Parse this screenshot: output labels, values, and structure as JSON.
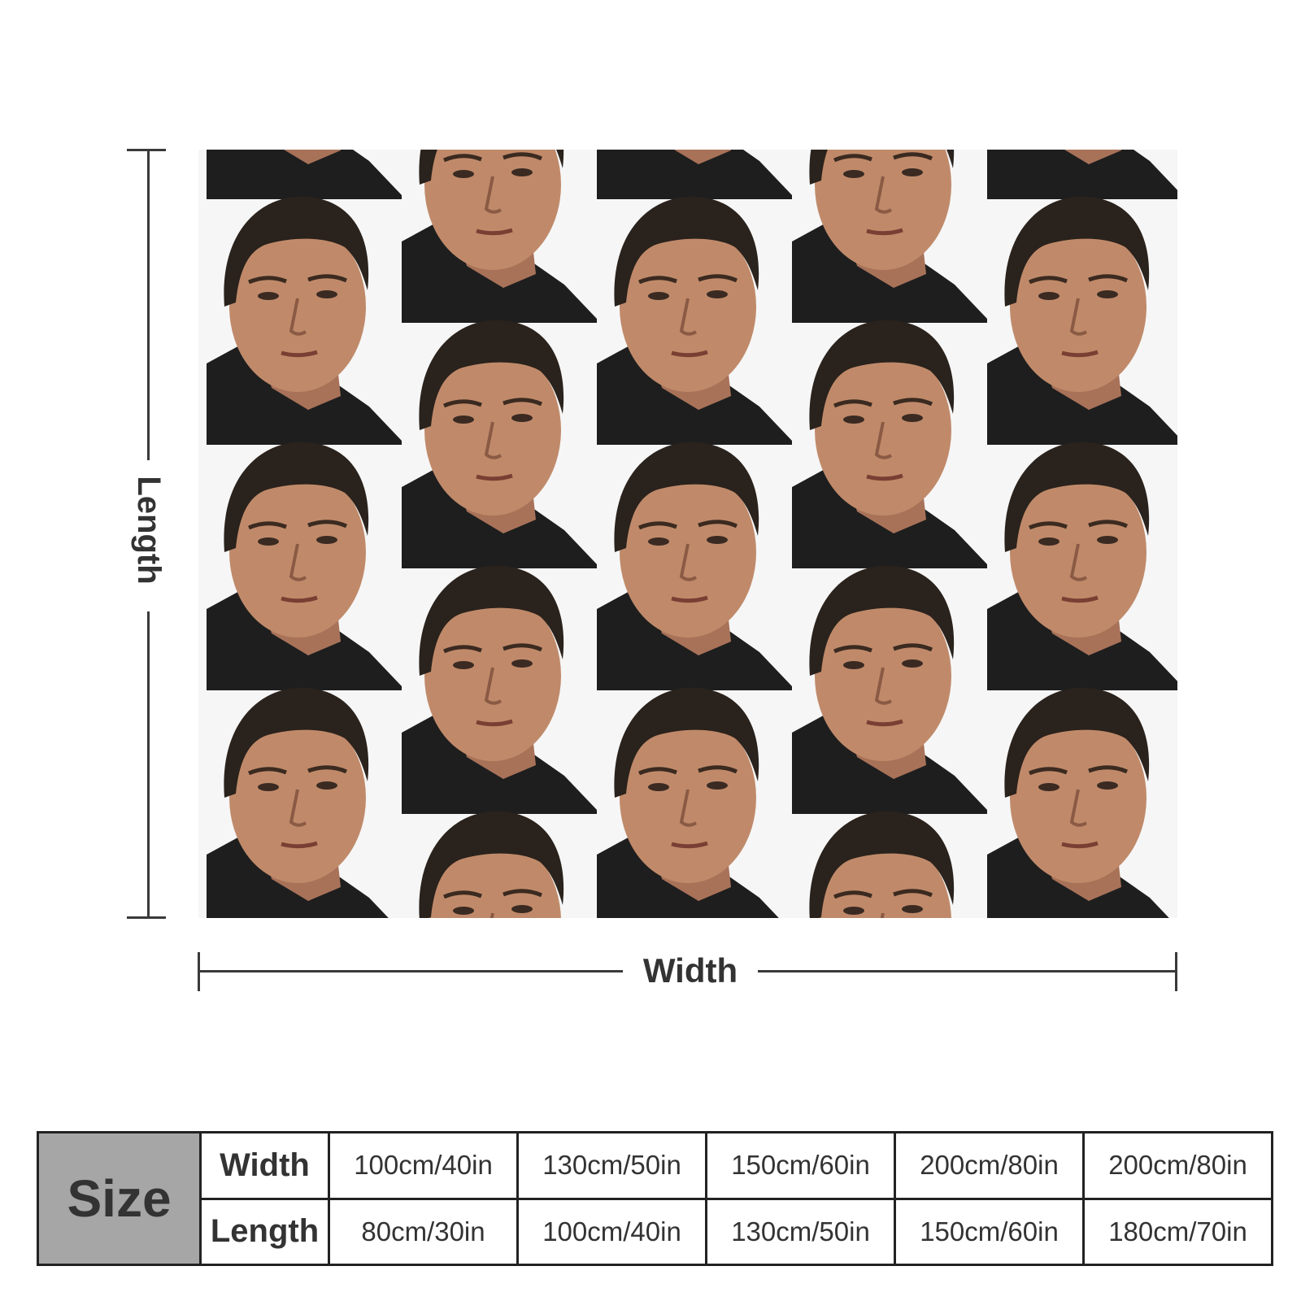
{
  "diagram": {
    "length_label": "Length",
    "width_label": "Width"
  },
  "product": {
    "pattern_icon": "portrait-face-icon",
    "colors": {
      "background": "#f6f6f6",
      "hair": "#2a221c",
      "skin": "#c08a6a",
      "shirt": "#1e1e1e",
      "dimension_line": "#3a3a3a"
    }
  },
  "size_table": {
    "size_label": "Size",
    "width_label": "Width",
    "length_label": "Length",
    "widths": [
      "100cm/40in",
      "130cm/50in",
      "150cm/60in",
      "200cm/80in",
      "200cm/80in"
    ],
    "lengths": [
      "80cm/30in",
      "100cm/40in",
      "130cm/50in",
      "150cm/60in",
      "180cm/70in"
    ]
  }
}
